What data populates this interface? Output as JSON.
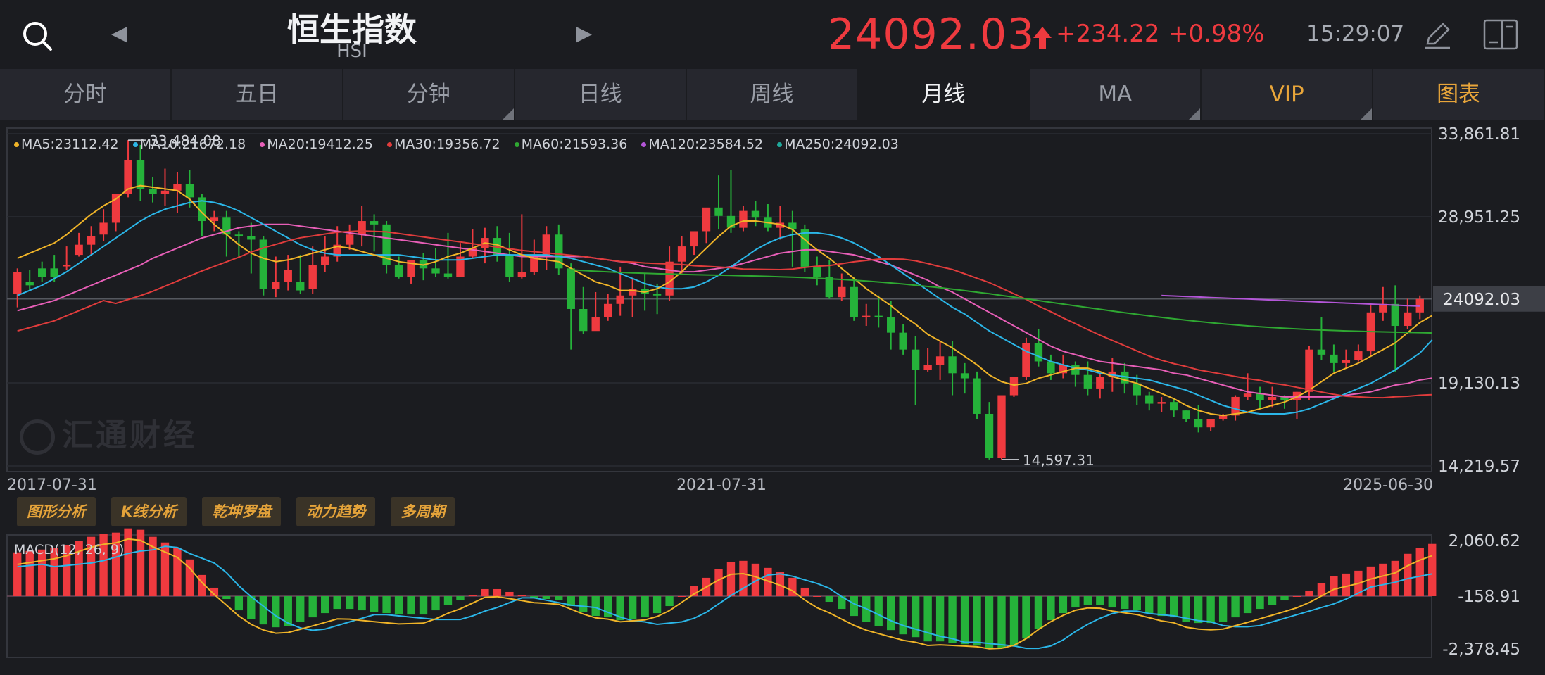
{
  "header": {
    "index_name": "恒生指数",
    "index_code": "HSI",
    "price": "24092.03",
    "change": "+234.22",
    "change_pct": "+0.98%",
    "time": "15:29:07",
    "up_color": "#ef3a3f"
  },
  "tabs": [
    {
      "label": "分时"
    },
    {
      "label": "五日"
    },
    {
      "label": "分钟"
    },
    {
      "label": "日线"
    },
    {
      "label": "周线"
    },
    {
      "label": "月线"
    },
    {
      "label": "MA"
    },
    {
      "label": "VIP"
    },
    {
      "label": "图表"
    }
  ],
  "legend": {
    "ma5": "MA5:23112.42",
    "ma10": "MA10:21672.18",
    "ma20": "MA20:19412.25",
    "ma30": "MA30:19356.72",
    "ma60": "MA60:21593.36",
    "ma120": "MA120:23584.52",
    "ma250": "MA250:24092.03",
    "colors": {
      "ma5": "#f0b428",
      "ma10": "#2bb6e8",
      "ma20": "#e85fb8",
      "ma30": "#e03c3c",
      "ma60": "#2fa832",
      "ma120": "#b456d8",
      "ma250": "#1fa89a"
    }
  },
  "price_axis": {
    "ticks": [
      "33,861.81",
      "28,951.25",
      "24092.03",
      "19,130.13",
      "14,219.57"
    ],
    "high_label": "33,484.08",
    "low_label": "14,597.31",
    "last_label": "24092.03"
  },
  "date_axis": [
    "2017-07-31",
    "2021-07-31",
    "2025-06-30"
  ],
  "watermark": "汇通财经",
  "tools": [
    "图形分析",
    "K线分析",
    "乾坤罗盘",
    "动力趋势",
    "多周期"
  ],
  "macd": {
    "label": "MACD(12, 26, 9)",
    "ticks": [
      "2,060.62",
      "-158.91",
      "-2,378.45"
    ]
  },
  "chart_data": {
    "type": "candlestick",
    "period": "monthly",
    "ylim": [
      14219.57,
      33861.81
    ],
    "candles": [
      [
        24400,
        25900,
        25700,
        23600
      ],
      [
        25100,
        25800,
        24900,
        24600
      ],
      [
        25900,
        26300,
        25400,
        25100
      ],
      [
        25900,
        26700,
        25400,
        25100
      ],
      [
        26100,
        27200,
        26100,
        25800
      ],
      [
        26700,
        28000,
        27300,
        26600
      ],
      [
        27300,
        28400,
        27800,
        26700
      ],
      [
        27900,
        29400,
        28600,
        27500
      ],
      [
        28600,
        30300,
        30300,
        28100
      ],
      [
        30300,
        33484,
        32300,
        30100
      ],
      [
        32300,
        33200,
        30600,
        29900
      ],
      [
        30600,
        31300,
        30300,
        29800
      ],
      [
        30300,
        31800,
        30500,
        29600
      ],
      [
        30500,
        31600,
        30900,
        29200
      ],
      [
        30900,
        31700,
        30100,
        29500
      ],
      [
        30100,
        30300,
        28700,
        27800
      ],
      [
        28700,
        29300,
        28900,
        28100
      ],
      [
        28900,
        29300,
        27900,
        26600
      ],
      [
        27900,
        28100,
        27800,
        26500
      ],
      [
        27800,
        28600,
        27600,
        25600
      ],
      [
        27600,
        27800,
        24700,
        24300
      ],
      [
        24700,
        26600,
        25100,
        24200
      ],
      [
        25100,
        26700,
        25800,
        24600
      ],
      [
        25100,
        26700,
        24600,
        24400
      ],
      [
        24700,
        27200,
        26100,
        24400
      ],
      [
        26100,
        27800,
        26600,
        25700
      ],
      [
        26600,
        28400,
        27300,
        26300
      ],
      [
        27300,
        28500,
        27900,
        27000
      ],
      [
        27900,
        29600,
        28700,
        27200
      ],
      [
        28700,
        29100,
        28500,
        26900
      ],
      [
        28500,
        28700,
        26100,
        25600
      ],
      [
        26100,
        26600,
        25400,
        25300
      ],
      [
        25400,
        26300,
        26400,
        25000
      ],
      [
        26400,
        26800,
        25900,
        25200
      ],
      [
        25900,
        27100,
        25600,
        25400
      ],
      [
        25600,
        28000,
        25400,
        25300
      ],
      [
        25400,
        27400,
        26600,
        25400
      ],
      [
        26600,
        28200,
        27100,
        26500
      ],
      [
        27100,
        28300,
        27700,
        26200
      ],
      [
        27700,
        28400,
        26700,
        26300
      ],
      [
        26700,
        28000,
        25400,
        25100
      ],
      [
        25400,
        29100,
        25700,
        25300
      ],
      [
        25700,
        27600,
        26700,
        25500
      ],
      [
        26700,
        28400,
        27900,
        25800
      ],
      [
        27900,
        28500,
        25900,
        25500
      ],
      [
        25900,
        26200,
        23500,
        21100
      ],
      [
        23500,
        24800,
        22200,
        22000
      ],
      [
        22200,
        24500,
        23000,
        22500
      ],
      [
        23000,
        24400,
        23800,
        22800
      ],
      [
        23800,
        26000,
        24300,
        23100
      ],
      [
        24300,
        25300,
        24700,
        23000
      ],
      [
        24700,
        25600,
        24400,
        23400
      ],
      [
        24400,
        25000,
        24300,
        23200
      ],
      [
        24300,
        27200,
        26300,
        24000
      ],
      [
        26300,
        27800,
        27200,
        25600
      ],
      [
        27200,
        28000,
        28100,
        26700
      ],
      [
        28100,
        28600,
        29500,
        27400
      ],
      [
        29500,
        31400,
        29000,
        28200
      ],
      [
        29000,
        31700,
        28300,
        28000
      ],
      [
        28300,
        29600,
        29300,
        28100
      ],
      [
        29300,
        29900,
        28900,
        28400
      ],
      [
        28900,
        29700,
        28300,
        28100
      ],
      [
        28300,
        29600,
        28600,
        27600
      ],
      [
        28600,
        29300,
        28200,
        26000
      ],
      [
        28200,
        28500,
        26000,
        25700
      ],
      [
        26000,
        26600,
        25400,
        24900
      ],
      [
        25400,
        26400,
        24200,
        24100
      ],
      [
        24200,
        25600,
        24800,
        24000
      ],
      [
        24800,
        25400,
        23000,
        22800
      ],
      [
        23000,
        23800,
        23100,
        22500
      ],
      [
        23100,
        24300,
        23000,
        22400
      ],
      [
        23000,
        24000,
        22100,
        21100
      ],
      [
        22100,
        22600,
        21100,
        20800
      ],
      [
        21100,
        21900,
        19900,
        17800
      ],
      [
        19900,
        21200,
        20200,
        19800
      ],
      [
        20200,
        21600,
        20700,
        19300
      ],
      [
        20700,
        21600,
        19700,
        18400
      ],
      [
        19700,
        20300,
        19400,
        18500
      ],
      [
        19400,
        19800,
        17300,
        17000
      ],
      [
        17300,
        18000,
        14700,
        14600
      ],
      [
        14700,
        18300,
        18400,
        14600
      ],
      [
        18400,
        19300,
        19500,
        18300
      ],
      [
        19500,
        21800,
        21500,
        19300
      ],
      [
        21500,
        22300,
        20400,
        20100
      ],
      [
        20400,
        20800,
        19700,
        19300
      ],
      [
        19700,
        20800,
        20200,
        19400
      ],
      [
        20200,
        20400,
        19600,
        18900
      ],
      [
        19600,
        20400,
        18800,
        18400
      ],
      [
        18800,
        19700,
        19500,
        18200
      ],
      [
        19500,
        20600,
        19800,
        18600
      ],
      [
        19800,
        20300,
        19100,
        18500
      ],
      [
        19100,
        19600,
        18400,
        17800
      ],
      [
        18400,
        18600,
        17900,
        17500
      ],
      [
        17900,
        18300,
        18000,
        17400
      ],
      [
        18000,
        18200,
        17500,
        17100
      ],
      [
        17500,
        17500,
        17000,
        16800
      ],
      [
        17000,
        17800,
        16500,
        16200
      ],
      [
        16500,
        16800,
        17000,
        16300
      ],
      [
        17000,
        17300,
        17200,
        16900
      ],
      [
        17200,
        18400,
        18300,
        16900
      ],
      [
        18300,
        19700,
        18500,
        18100
      ],
      [
        18500,
        18900,
        18100,
        17600
      ],
      [
        18100,
        18900,
        18300,
        17700
      ],
      [
        18300,
        18400,
        18100,
        17600
      ],
      [
        18100,
        18600,
        18600,
        17000
      ],
      [
        18600,
        21300,
        21100,
        18100
      ],
      [
        21100,
        23000,
        20800,
        20500
      ],
      [
        20800,
        21400,
        20300,
        19800
      ],
      [
        20300,
        21100,
        20500,
        20000
      ],
      [
        20500,
        21400,
        21000,
        20400
      ],
      [
        21000,
        23700,
        23300,
        20800
      ],
      [
        23300,
        24800,
        23800,
        22800
      ],
      [
        23800,
        24900,
        22500,
        19800
      ],
      [
        22500,
        24100,
        23300,
        22300
      ],
      [
        23300,
        24300,
        24092,
        22900
      ]
    ],
    "ma5": [
      26500,
      26800,
      27100,
      27400,
      27900,
      28500,
      29100,
      29600,
      30000,
      30600,
      30800,
      30700,
      30600,
      30500,
      30000,
      29200,
      28500,
      27900,
      27300,
      26800,
      26500,
      26300,
      26400,
      26600,
      26800,
      27000,
      27200,
      27100,
      26900,
      26700,
      26500,
      26300,
      26200,
      26100,
      26300,
      26600,
      26800,
      27100,
      27400,
      27300,
      27000,
      26700,
      26500,
      26400,
      26300,
      25900,
      25500,
      25100,
      24900,
      24600,
      24600,
      24500,
      24700,
      25100,
      25700,
      26400,
      27100,
      27800,
      28400,
      28700,
      28700,
      28600,
      28500,
      28200,
      27600,
      27000,
      26500,
      25900,
      25300,
      24700,
      24200,
      23700,
      23100,
      22600,
      22000,
      21600,
      21200,
      20700,
      20200,
      19600,
      19200,
      19000,
      19100,
      19400,
      19600,
      19800,
      20000,
      20000,
      19800,
      19500,
      19300,
      19100,
      18800,
      18500,
      18200,
      17800,
      17500,
      17300,
      17200,
      17300,
      17400,
      17600,
      17800,
      18000,
      18300,
      18700,
      19200,
      19700,
      20000,
      20300,
      20700,
      21100,
      21500,
      22100,
      22700,
      23112
    ],
    "ma10": [
      24300,
      24600,
      24900,
      25300,
      25700,
      26200,
      26700,
      27200,
      27700,
      28200,
      28700,
      29100,
      29400,
      29600,
      29800,
      29900,
      29800,
      29600,
      29300,
      28900,
      28500,
      28100,
      27700,
      27300,
      27000,
      26800,
      26700,
      26700,
      26700,
      26700,
      26700,
      26700,
      26600,
      26500,
      26400,
      26400,
      26400,
      26500,
      26600,
      26700,
      26700,
      26700,
      26700,
      26700,
      26600,
      26500,
      26300,
      26100,
      25900,
      25600,
      25300,
      25000,
      24800,
      24700,
      24700,
      24800,
      25100,
      25500,
      26000,
      26500,
      27000,
      27400,
      27700,
      27900,
      28000,
      28000,
      27900,
      27700,
      27400,
      27000,
      26600,
      26100,
      25600,
      25100,
      24600,
      24100,
      23600,
      23200,
      22700,
      22200,
      21800,
      21400,
      21000,
      20700,
      20400,
      20200,
      20000,
      19900,
      19700,
      19600,
      19500,
      19400,
      19300,
      19100,
      18900,
      18700,
      18400,
      18100,
      17800,
      17600,
      17400,
      17300,
      17300,
      17300,
      17400,
      17600,
      17900,
      18200,
      18500,
      18800,
      19100,
      19500,
      19900,
      20400,
      20900,
      21672
    ],
    "ma20": [
      23400,
      23600,
      23800,
      24000,
      24300,
      24600,
      24900,
      25200,
      25500,
      25800,
      26100,
      26500,
      26800,
      27100,
      27400,
      27700,
      27900,
      28100,
      28300,
      28400,
      28500,
      28500,
      28500,
      28400,
      28300,
      28200,
      28100,
      28000,
      27900,
      27800,
      27700,
      27600,
      27500,
      27400,
      27300,
      27200,
      27100,
      27000,
      26900,
      26800,
      26700,
      26600,
      26600,
      26600,
      26600,
      26600,
      26600,
      26500,
      26400,
      26300,
      26200,
      26000,
      25900,
      25800,
      25700,
      25700,
      25800,
      25900,
      26000,
      26200,
      26400,
      26600,
      26800,
      26900,
      27000,
      27000,
      26900,
      26800,
      26700,
      26500,
      26300,
      26100,
      25800,
      25500,
      25200,
      24800,
      24500,
      24100,
      23700,
      23300,
      22900,
      22500,
      22100,
      21700,
      21300,
      21000,
      20800,
      20600,
      20400,
      20300,
      20200,
      20100,
      20000,
      19900,
      19700,
      19600,
      19400,
      19200,
      19000,
      18800,
      18600,
      18500,
      18400,
      18300,
      18300,
      18300,
      18300,
      18300,
      18400,
      18500,
      18600,
      18800,
      19000,
      19100,
      19300,
      19412
    ]
  }
}
